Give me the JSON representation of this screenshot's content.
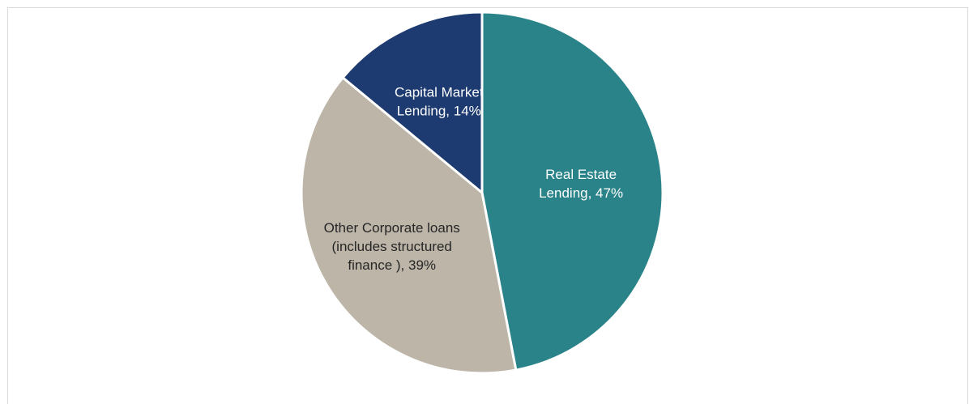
{
  "chart_data": {
    "type": "pie",
    "title": "",
    "start_angle_deg": 0,
    "direction": "clockwise",
    "slices": [
      {
        "name": "Real Estate Lending",
        "value": 47,
        "color": "#2a8389",
        "label_lines": [
          "Real Estate",
          "Lending, 47%"
        ],
        "label_color": "#ffffff"
      },
      {
        "name": "Other Corporate loans (includes structured finance )",
        "value": 39,
        "color": "#bcb5a8",
        "label_lines": [
          "Other Corporate loans",
          "(includes structured",
          "finance ), 39%"
        ],
        "label_color": "#262626"
      },
      {
        "name": "Capital Market Lending",
        "value": 14,
        "color": "#1d3b70",
        "label_lines": [
          "Capital Market",
          "Lending, 14%"
        ],
        "label_color": "#ffffff"
      }
    ]
  }
}
